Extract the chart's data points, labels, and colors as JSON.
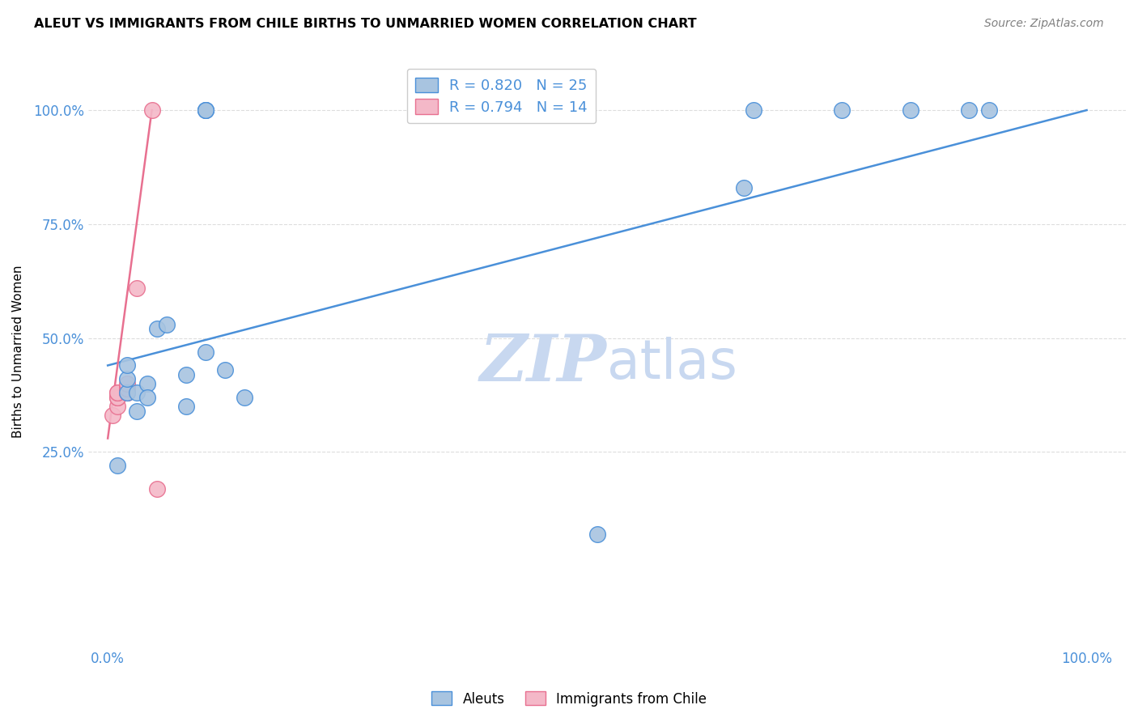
{
  "title": "ALEUT VS IMMIGRANTS FROM CHILE BIRTHS TO UNMARRIED WOMEN CORRELATION CHART",
  "source": "Source: ZipAtlas.com",
  "ylabel": "Births to Unmarried Women",
  "xmin": -0.02,
  "xmax": 1.04,
  "ymin": -0.18,
  "ymax": 1.12,
  "aleuts_x": [
    0.01,
    0.02,
    0.02,
    0.02,
    0.03,
    0.03,
    0.04,
    0.04,
    0.05,
    0.06,
    0.08,
    0.08,
    0.1,
    0.1,
    0.1,
    0.1,
    0.12,
    0.14,
    0.5,
    0.65,
    0.66,
    0.75,
    0.82,
    0.88,
    0.9
  ],
  "aleuts_y": [
    0.22,
    0.38,
    0.41,
    0.44,
    0.34,
    0.38,
    0.4,
    0.37,
    0.52,
    0.53,
    0.35,
    0.42,
    0.47,
    1.0,
    1.0,
    1.0,
    0.43,
    0.37,
    0.07,
    0.83,
    1.0,
    1.0,
    1.0,
    1.0,
    1.0
  ],
  "chile_x": [
    0.005,
    0.01,
    0.01,
    0.01,
    0.01,
    0.01,
    0.02,
    0.02,
    0.02,
    0.02,
    0.02,
    0.03,
    0.05,
    0.045
  ],
  "chile_y": [
    0.33,
    0.35,
    0.37,
    0.37,
    0.38,
    0.38,
    0.38,
    0.38,
    0.39,
    0.39,
    0.4,
    0.61,
    0.17,
    1.0
  ],
  "aleuts_R": 0.82,
  "aleuts_N": 25,
  "chile_R": 0.794,
  "chile_N": 14,
  "aleuts_color": "#a8c4e0",
  "chile_color": "#f4b8c8",
  "aleuts_line_color": "#4a90d9",
  "chile_line_color": "#e87090",
  "blue_line_x0": 0.0,
  "blue_line_y0": 0.44,
  "blue_line_x1": 1.0,
  "blue_line_y1": 1.0,
  "pink_line_x0": 0.0,
  "pink_line_y0": 0.28,
  "pink_line_x1": 0.045,
  "pink_line_y1": 1.0,
  "watermark_zip": "ZIP",
  "watermark_atlas": "atlas",
  "watermark_color": "#c8d8f0",
  "legend_aleuts_label": "Aleuts",
  "legend_chile_label": "Immigrants from Chile",
  "background_color": "#ffffff",
  "grid_color": "#dddddd"
}
